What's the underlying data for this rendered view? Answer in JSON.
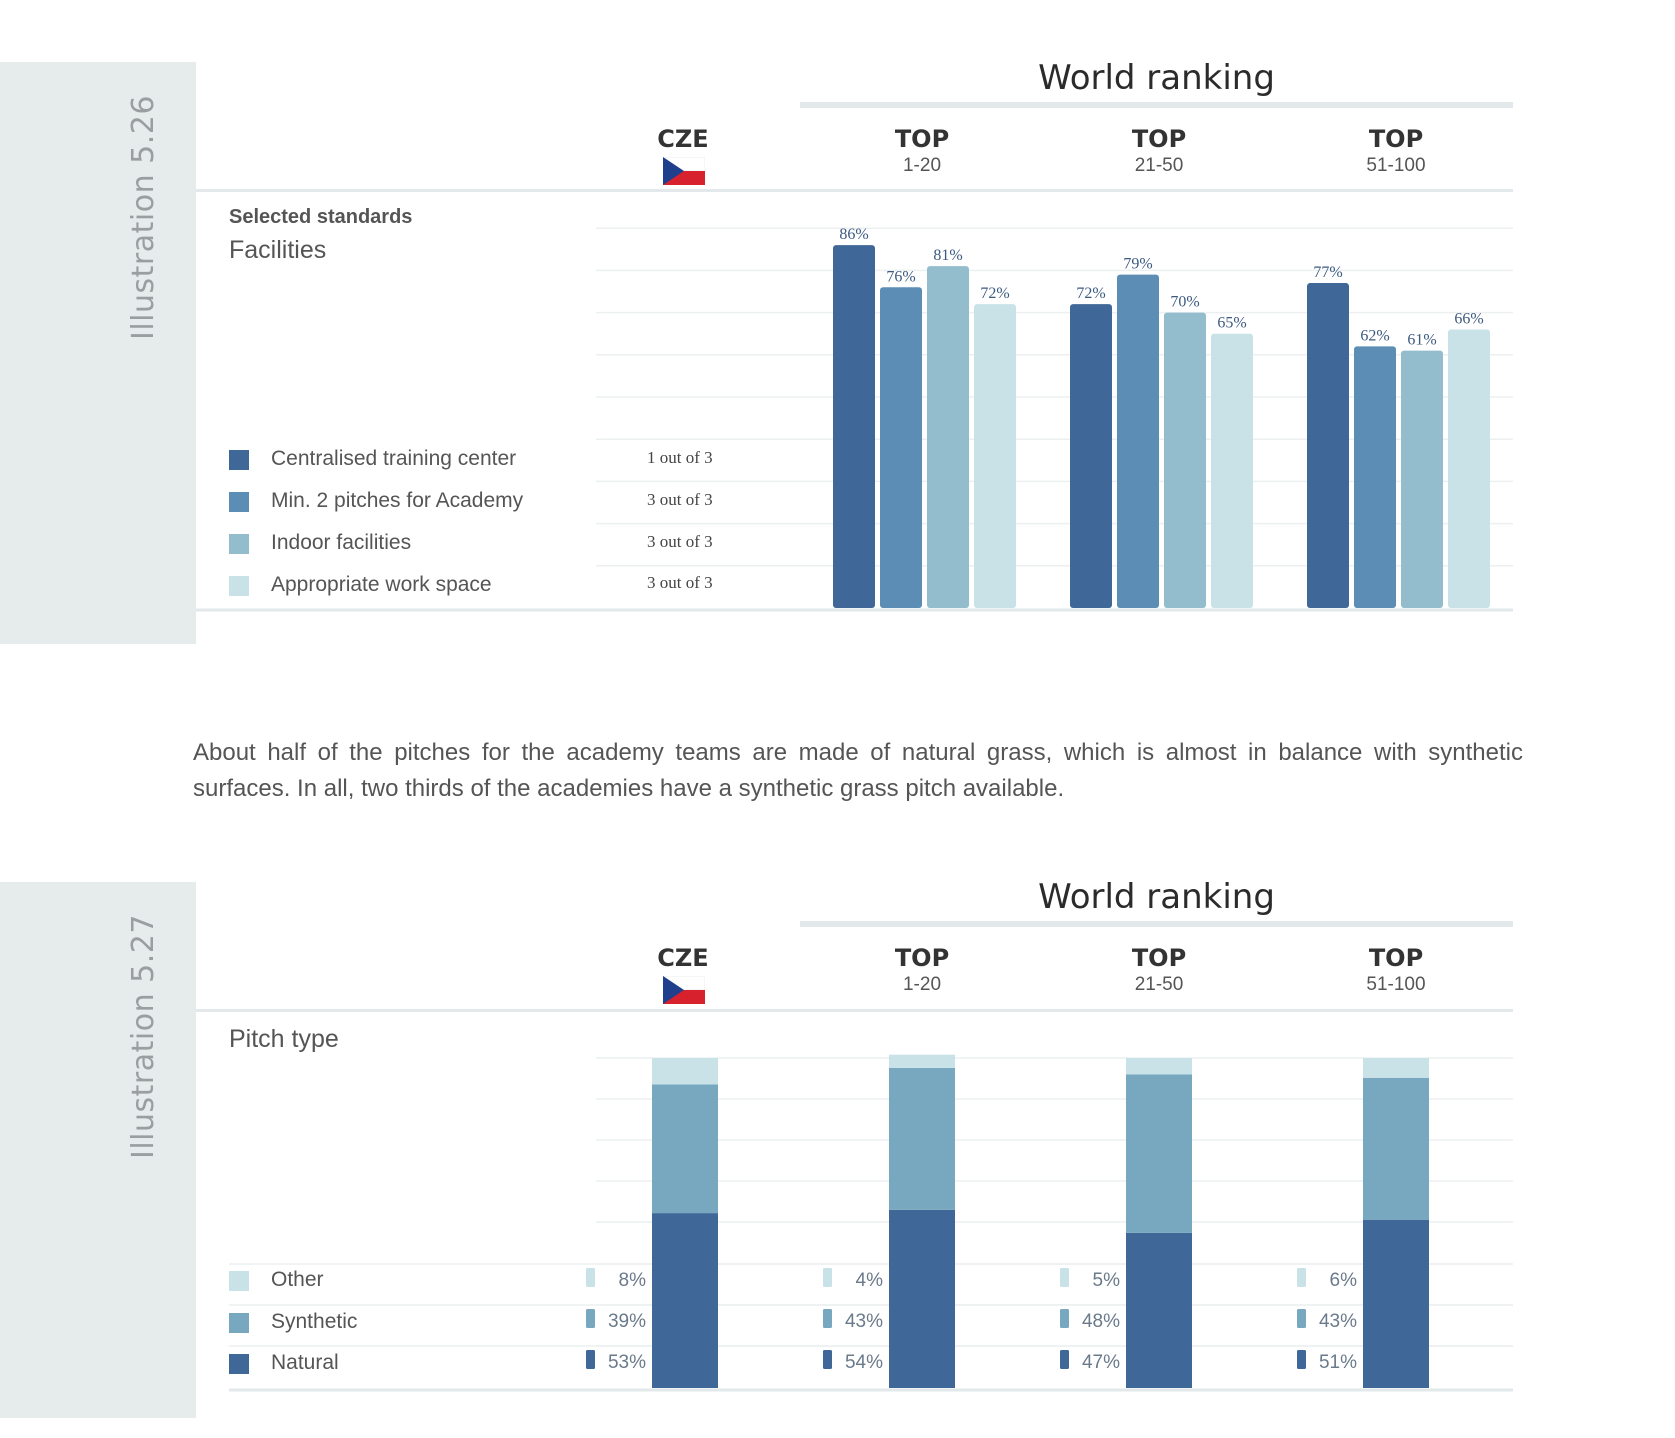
{
  "colors": {
    "natural_dark": "#3f6797",
    "mid": "#5b8db5",
    "light": "#93bccd",
    "lightest": "#c9e2e8",
    "panel": "#e6ebec",
    "flag_blue": "#1f3f8c",
    "flag_red": "#d7222d"
  },
  "illustration_526": {
    "label": "Illustration 5.26",
    "world_ranking": "World ranking",
    "columns": [
      {
        "top": "CZE",
        "range": ""
      },
      {
        "top": "TOP",
        "range": "1-20"
      },
      {
        "top": "TOP",
        "range": "21-50"
      },
      {
        "top": "TOP",
        "range": "51-100"
      }
    ],
    "subtitle": "Selected standards",
    "section_title": "Facilities",
    "legend": [
      {
        "label": "Centralised training center",
        "cze": "1 out of 3",
        "color": "#3f6797"
      },
      {
        "label": "Min. 2 pitches for Academy",
        "cze": "3 out of 3",
        "color": "#5b8db5"
      },
      {
        "label": "Indoor facilities",
        "cze": "3 out of 3",
        "color": "#93bccd"
      },
      {
        "label": "Appropriate work space",
        "cze": "3 out of 3",
        "color": "#c9e2e8"
      }
    ]
  },
  "paragraph": "About half of the pitches for the academy teams are made of natural grass, which is almost in balance with synthetic surfaces. In all, two thirds of the academies have a synthetic grass pitch available.",
  "illustration_527": {
    "label": "Illustration 5.27",
    "world_ranking": "World ranking",
    "columns": [
      {
        "top": "CZE",
        "range": ""
      },
      {
        "top": "TOP",
        "range": "1-20"
      },
      {
        "top": "TOP",
        "range": "21-50"
      },
      {
        "top": "TOP",
        "range": "51-100"
      }
    ],
    "section_title": "Pitch type",
    "legend": [
      {
        "label": "Other",
        "color": "#c9e2e8"
      },
      {
        "label": "Synthetic",
        "color": "#78a8bf"
      },
      {
        "label": "Natural",
        "color": "#3f6797"
      }
    ]
  },
  "chart_data": [
    {
      "type": "bar",
      "title": "Facilities",
      "categories": [
        "TOP 1-20",
        "TOP 21-50",
        "TOP 51-100"
      ],
      "series": [
        {
          "name": "Centralised training center",
          "values": [
            86,
            72,
            77
          ],
          "labels": [
            "86%",
            "72%",
            "77%"
          ]
        },
        {
          "name": "Min. 2 pitches for Academy",
          "values": [
            76,
            79,
            62
          ],
          "labels": [
            "76%",
            "79%",
            "62%"
          ]
        },
        {
          "name": "Indoor facilities",
          "values": [
            81,
            70,
            61
          ],
          "labels": [
            "81%",
            "70%",
            "61%"
          ]
        },
        {
          "name": "Appropriate work space",
          "values": [
            72,
            65,
            66
          ],
          "labels": [
            "72%",
            "65%",
            "66%"
          ]
        }
      ],
      "ylim": [
        0,
        100
      ],
      "grid": true
    },
    {
      "type": "bar",
      "stacked": true,
      "title": "Pitch type",
      "categories": [
        "CZE",
        "TOP 1-20",
        "TOP 21-50",
        "TOP 51-100"
      ],
      "series": [
        {
          "name": "Natural",
          "values": [
            53,
            54,
            47,
            51
          ],
          "labels": [
            "53%",
            "54%",
            "47%",
            "51%"
          ]
        },
        {
          "name": "Synthetic",
          "values": [
            39,
            43,
            48,
            43
          ],
          "labels": [
            "39%",
            "43%",
            "48%",
            "43%"
          ]
        },
        {
          "name": "Other",
          "values": [
            8,
            4,
            5,
            6
          ],
          "labels": [
            "8%",
            "4%",
            "5%",
            "6%"
          ]
        }
      ],
      "ylim": [
        0,
        100
      ],
      "grid": true
    }
  ]
}
